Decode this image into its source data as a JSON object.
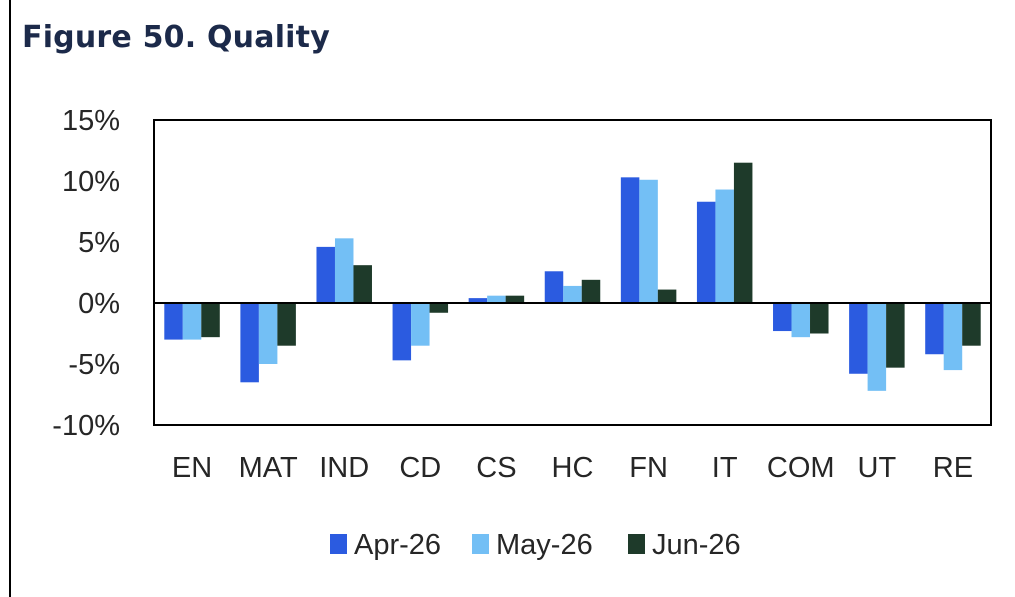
{
  "title": "Figure 50. Quality",
  "chart_data": {
    "type": "bar",
    "title": "Figure 50. Quality",
    "xlabel": "",
    "ylabel": "",
    "ylim": [
      -10,
      15
    ],
    "yticks": [
      15,
      10,
      5,
      0,
      -5,
      -10
    ],
    "ytick_labels": [
      "15%",
      "10%",
      "5%",
      "0%",
      "-5%",
      "-10%"
    ],
    "grid": false,
    "legend_position": "bottom",
    "categories": [
      "EN",
      "MAT",
      "IND",
      "CD",
      "CS",
      "HC",
      "FN",
      "IT",
      "COM",
      "UT",
      "RE"
    ],
    "series": [
      {
        "name": "Apr-26",
        "color": "#2b5be0",
        "values": [
          -3.0,
          -6.5,
          4.6,
          -4.7,
          0.4,
          2.6,
          10.3,
          8.3,
          -2.3,
          -5.8,
          -4.2
        ]
      },
      {
        "name": "May-26",
        "color": "#73bff5",
        "values": [
          -3.0,
          -5.0,
          5.3,
          -3.5,
          0.6,
          1.4,
          10.1,
          9.3,
          -2.8,
          -7.2,
          -5.5
        ]
      },
      {
        "name": "Jun-26",
        "color": "#1e3a2a",
        "values": [
          -2.8,
          -3.5,
          3.1,
          -0.8,
          0.6,
          1.9,
          1.1,
          11.5,
          -2.5,
          -5.3,
          -3.5
        ]
      }
    ]
  }
}
